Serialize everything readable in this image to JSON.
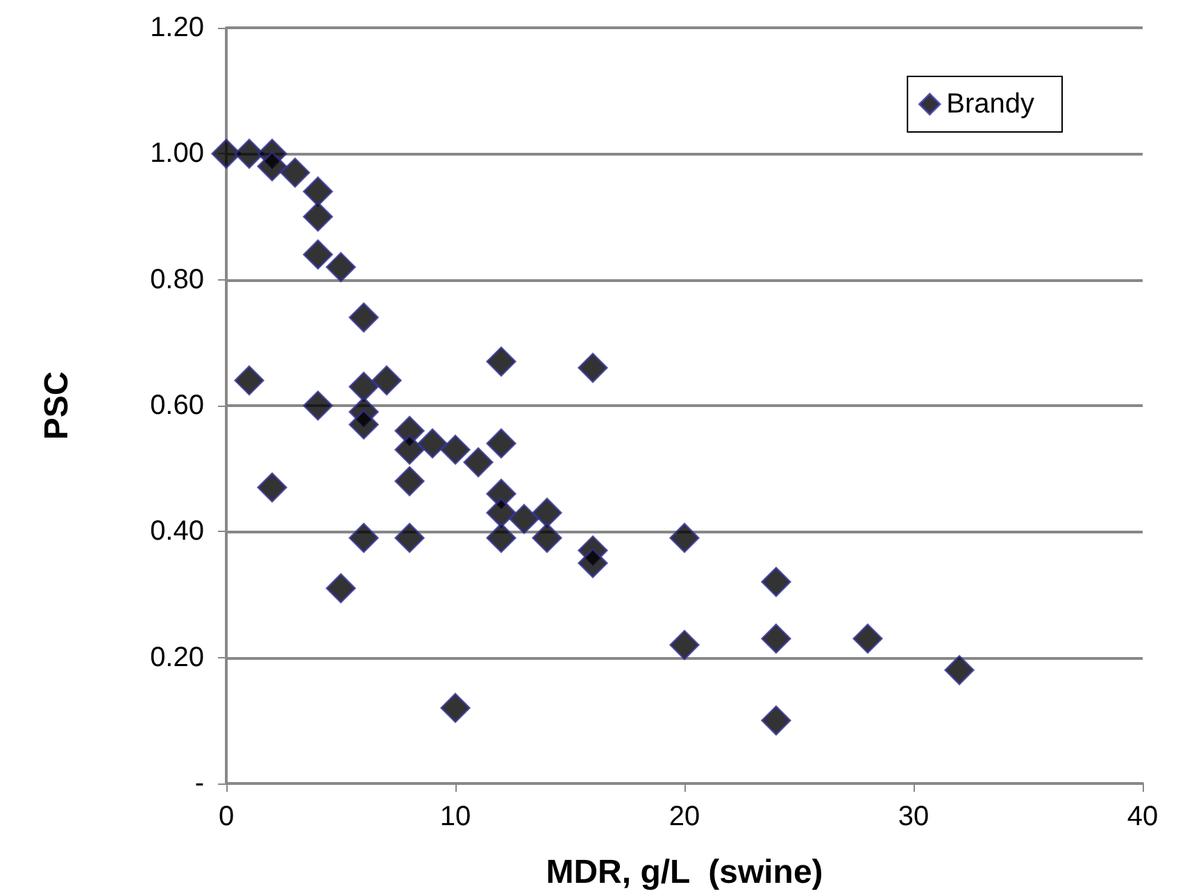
{
  "chart_data": {
    "type": "scatter",
    "xlabel": "MDR, g/L  (swine)",
    "ylabel": "PSC",
    "series": [
      {
        "name": "Brandy",
        "color": "#000000",
        "x": [
          0,
          1,
          2,
          2,
          3,
          4,
          4,
          4,
          5,
          6,
          1,
          4,
          6,
          6,
          6,
          7,
          2,
          6,
          5,
          8,
          8,
          8,
          8,
          9,
          10,
          11,
          12,
          12,
          12,
          12,
          12,
          13,
          14,
          14,
          16,
          16,
          16,
          10,
          20,
          20,
          24,
          24,
          24,
          28,
          32
        ],
        "values": [
          1.0,
          1.0,
          1.0,
          0.98,
          0.97,
          0.94,
          0.9,
          0.84,
          0.82,
          0.74,
          0.64,
          0.6,
          0.63,
          0.59,
          0.57,
          0.64,
          0.47,
          0.39,
          0.31,
          0.56,
          0.53,
          0.48,
          0.39,
          0.54,
          0.53,
          0.51,
          0.54,
          0.67,
          0.46,
          0.43,
          0.39,
          0.42,
          0.43,
          0.39,
          0.66,
          0.37,
          0.35,
          0.12,
          0.39,
          0.22,
          0.32,
          0.23,
          0.1,
          0.23,
          0.18
        ]
      }
    ],
    "xlim": [
      0,
      40
    ],
    "xticks": [
      0,
      10,
      20,
      30,
      40
    ],
    "ylim": [
      0,
      1.2
    ],
    "yticks": [
      {
        "value": 0,
        "label": "-"
      },
      {
        "value": 0.2,
        "label": "0.20"
      },
      {
        "value": 0.4,
        "label": "0.40"
      },
      {
        "value": 0.6,
        "label": "0.60"
      },
      {
        "value": 0.8,
        "label": "0.80"
      },
      {
        "value": 1.0,
        "label": "1.00"
      },
      {
        "value": 1.2,
        "label": "1.20"
      }
    ],
    "grid": "y",
    "legend": "top right",
    "marker": "diamond"
  }
}
